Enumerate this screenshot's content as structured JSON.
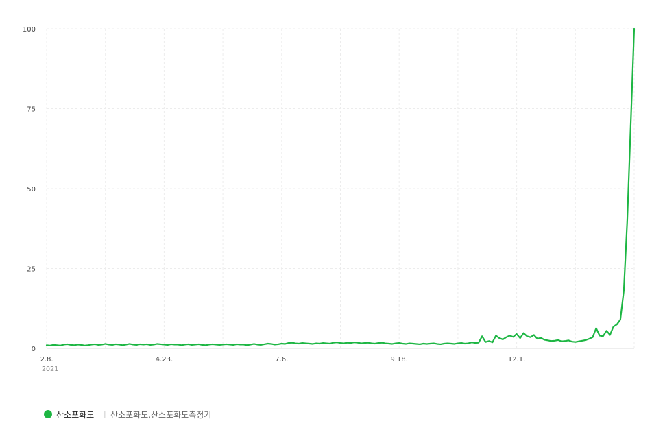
{
  "colors": {
    "series": "#1db643",
    "grid": "#ececec",
    "axis": "#dcdcdc"
  },
  "legend": {
    "series_name": "산소포화도",
    "separator": "|",
    "keywords": "산소포화도,산소포화도측정기"
  },
  "chart_data": {
    "type": "line",
    "x_ticks": [
      "2.8.",
      "4.23.",
      "7.6.",
      "9.18.",
      "12.1."
    ],
    "x_year_label": "2021",
    "y_ticks": [
      "0",
      "25",
      "50",
      "75",
      "100"
    ],
    "ylim": [
      0,
      100
    ],
    "grid": true,
    "series": [
      {
        "name": "산소포화도",
        "values": [
          1.0,
          0.9,
          1.1,
          1.0,
          0.9,
          1.2,
          1.3,
          1.1,
          1.0,
          1.2,
          1.1,
          0.9,
          1.0,
          1.2,
          1.3,
          1.1,
          1.2,
          1.4,
          1.2,
          1.1,
          1.3,
          1.2,
          1.0,
          1.2,
          1.4,
          1.2,
          1.1,
          1.3,
          1.2,
          1.3,
          1.1,
          1.2,
          1.4,
          1.3,
          1.2,
          1.1,
          1.3,
          1.2,
          1.2,
          1.0,
          1.2,
          1.3,
          1.1,
          1.2,
          1.3,
          1.1,
          1.0,
          1.2,
          1.3,
          1.2,
          1.1,
          1.2,
          1.3,
          1.2,
          1.1,
          1.3,
          1.2,
          1.2,
          1.0,
          1.2,
          1.4,
          1.2,
          1.1,
          1.3,
          1.5,
          1.4,
          1.2,
          1.3,
          1.5,
          1.4,
          1.7,
          1.8,
          1.6,
          1.5,
          1.7,
          1.6,
          1.5,
          1.4,
          1.6,
          1.5,
          1.7,
          1.6,
          1.5,
          1.8,
          1.9,
          1.7,
          1.6,
          1.8,
          1.7,
          1.9,
          1.8,
          1.6,
          1.7,
          1.8,
          1.6,
          1.5,
          1.7,
          1.8,
          1.6,
          1.5,
          1.4,
          1.6,
          1.7,
          1.5,
          1.4,
          1.6,
          1.5,
          1.4,
          1.3,
          1.5,
          1.4,
          1.5,
          1.6,
          1.4,
          1.3,
          1.5,
          1.6,
          1.5,
          1.4,
          1.6,
          1.7,
          1.5,
          1.6,
          1.9,
          1.7,
          1.8,
          3.8,
          2.0,
          2.3,
          1.9,
          4.0,
          3.2,
          2.8,
          3.5,
          4.0,
          3.6,
          4.5,
          3.2,
          4.8,
          3.8,
          3.5,
          4.2,
          3.0,
          3.3,
          2.7,
          2.5,
          2.3,
          2.4,
          2.6,
          2.2,
          2.3,
          2.5,
          2.1,
          2.0,
          2.2,
          2.4,
          2.6,
          3.0,
          3.5,
          6.3,
          4.0,
          3.8,
          5.5,
          4.2,
          6.8,
          7.5,
          9.0,
          18.0,
          40.0,
          70.0,
          100.0
        ]
      }
    ]
  }
}
